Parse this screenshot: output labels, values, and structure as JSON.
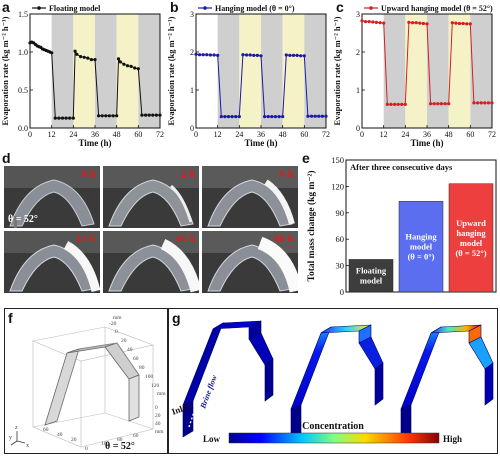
{
  "panel_labels": {
    "a": "a",
    "b": "b",
    "c": "c",
    "d": "d",
    "e": "e",
    "f": "f",
    "g": "g"
  },
  "chart_data": [
    {
      "id": "a",
      "type": "line",
      "legend": "Floating model",
      "xlabel": "Time (h)",
      "ylabel": "Evaporation rate (kg m⁻² h⁻¹)",
      "xlim": [
        0,
        72
      ],
      "ylim": [
        0,
        1.5
      ],
      "xticks": [
        0,
        12,
        24,
        36,
        48,
        60,
        72
      ],
      "yticks": [
        0.0,
        0.5,
        1.0,
        1.5
      ],
      "ytick_labels": [
        "0.0",
        "0.5",
        "1.0",
        "1.5"
      ],
      "color": "#111111",
      "x": [
        0,
        1,
        2,
        3,
        4,
        5,
        6,
        7,
        8,
        9,
        10,
        11,
        12,
        14,
        16,
        18,
        20,
        22,
        24,
        25,
        26,
        28,
        30,
        32,
        34,
        36,
        38,
        40,
        42,
        44,
        46,
        48,
        49,
        50,
        52,
        54,
        56,
        58,
        60,
        62,
        64,
        66,
        68,
        70,
        72
      ],
      "y": [
        1.12,
        1.13,
        1.12,
        1.1,
        1.08,
        1.07,
        1.06,
        1.04,
        1.03,
        1.02,
        1.01,
        1.0,
        0.99,
        0.13,
        0.13,
        0.13,
        0.13,
        0.13,
        0.13,
        1.01,
        0.97,
        0.94,
        0.93,
        0.92,
        0.9,
        0.9,
        0.16,
        0.16,
        0.16,
        0.16,
        0.16,
        0.16,
        0.91,
        0.87,
        0.84,
        0.82,
        0.81,
        0.79,
        0.78,
        0.17,
        0.17,
        0.17,
        0.17,
        0.17,
        0.17
      ],
      "shading": [
        {
          "from": 12,
          "to": 24,
          "color": "#cfcfcf"
        },
        {
          "from": 24,
          "to": 36,
          "color": "#f6f2c8"
        },
        {
          "from": 36,
          "to": 48,
          "color": "#cfcfcf"
        },
        {
          "from": 48,
          "to": 60,
          "color": "#f6f2c8"
        },
        {
          "from": 60,
          "to": 72,
          "color": "#cfcfcf"
        }
      ]
    },
    {
      "id": "b",
      "type": "line",
      "legend": "Hanging model (θ = 0°)",
      "xlabel": "Time (h)",
      "ylabel": "Evaporation rate (kg m⁻² h⁻¹)",
      "xlim": [
        0,
        72
      ],
      "ylim": [
        0,
        3
      ],
      "xticks": [
        0,
        12,
        24,
        36,
        48,
        60,
        72
      ],
      "yticks": [
        0,
        1,
        2,
        3
      ],
      "ytick_labels": [
        "0",
        "1",
        "2",
        "3"
      ],
      "color": "#1a1aa6",
      "x": [
        0,
        2,
        4,
        6,
        8,
        10,
        12,
        14,
        16,
        18,
        20,
        22,
        24,
        26,
        28,
        30,
        32,
        34,
        36,
        38,
        40,
        42,
        44,
        46,
        48,
        50,
        52,
        54,
        56,
        58,
        60,
        62,
        64,
        66,
        68,
        70,
        72
      ],
      "y": [
        1.94,
        1.93,
        1.93,
        1.93,
        1.92,
        1.92,
        1.91,
        0.3,
        0.3,
        0.3,
        0.3,
        0.3,
        0.3,
        1.93,
        1.92,
        1.92,
        1.91,
        1.91,
        1.9,
        0.3,
        0.3,
        0.3,
        0.3,
        0.3,
        0.3,
        1.92,
        1.91,
        1.91,
        1.91,
        1.9,
        1.9,
        0.31,
        0.31,
        0.31,
        0.31,
        0.31,
        0.31
      ],
      "shading": [
        {
          "from": 12,
          "to": 24,
          "color": "#cfcfcf"
        },
        {
          "from": 24,
          "to": 36,
          "color": "#f6f2c8"
        },
        {
          "from": 36,
          "to": 48,
          "color": "#cfcfcf"
        },
        {
          "from": 48,
          "to": 60,
          "color": "#f6f2c8"
        },
        {
          "from": 60,
          "to": 72,
          "color": "#cfcfcf"
        }
      ]
    },
    {
      "id": "c",
      "type": "line",
      "legend": "Upward hanging model (θ = 52°)",
      "xlabel": "Time (h)",
      "ylabel": "Evaporation rate (kg m⁻² h⁻¹)",
      "xlim": [
        0,
        72
      ],
      "ylim": [
        0,
        3
      ],
      "xticks": [
        0,
        12,
        24,
        36,
        48,
        60,
        72
      ],
      "yticks": [
        0,
        1,
        2,
        3
      ],
      "ytick_labels": [
        "0",
        "1",
        "2",
        "3"
      ],
      "color": "#d42020",
      "x": [
        0,
        2,
        4,
        6,
        8,
        10,
        12,
        14,
        16,
        18,
        20,
        22,
        24,
        26,
        28,
        30,
        32,
        34,
        36,
        38,
        40,
        42,
        44,
        46,
        48,
        50,
        52,
        54,
        56,
        58,
        60,
        62,
        64,
        66,
        68,
        70,
        72
      ],
      "y": [
        2.82,
        2.8,
        2.8,
        2.79,
        2.78,
        2.77,
        2.76,
        0.62,
        0.62,
        0.62,
        0.62,
        0.62,
        0.62,
        2.78,
        2.77,
        2.77,
        2.76,
        2.75,
        2.74,
        0.64,
        0.64,
        0.64,
        0.64,
        0.64,
        0.64,
        2.77,
        2.76,
        2.75,
        2.75,
        2.74,
        2.74,
        0.66,
        0.66,
        0.66,
        0.66,
        0.66,
        0.66
      ],
      "shading": [
        {
          "from": 12,
          "to": 24,
          "color": "#cfcfcf"
        },
        {
          "from": 24,
          "to": 36,
          "color": "#f6f2c8"
        },
        {
          "from": 36,
          "to": 48,
          "color": "#cfcfcf"
        },
        {
          "from": 48,
          "to": 60,
          "color": "#f6f2c8"
        },
        {
          "from": 60,
          "to": 72,
          "color": "#cfcfcf"
        }
      ]
    },
    {
      "id": "e",
      "type": "bar",
      "annotation": "After three consecutive days",
      "ylabel": "Total mass change (kg m⁻²)",
      "ylim": [
        0,
        150
      ],
      "yticks": [
        0,
        30,
        60,
        90,
        120,
        150
      ],
      "categories": [
        "Floating model",
        "Hanging model (θ = 0°)",
        "Upward hanging model (θ = 52°)"
      ],
      "category_lines": [
        [
          "Floating",
          "model"
        ],
        [
          "Hanging",
          "model",
          "(θ = 0°)"
        ],
        [
          "Upward",
          "hanging",
          "model",
          "(θ = 52°)"
        ]
      ],
      "values": [
        37,
        103,
        123
      ],
      "colors": [
        "#3d3d3d",
        "#5b6ef0",
        "#ee3f3f"
      ]
    }
  ],
  "photos": {
    "times": [
      "0 h",
      "2 h",
      "6 h",
      "12 h",
      "36 h",
      "60 h"
    ],
    "angle": "θ = 52°"
  },
  "model_f": {
    "angle": "θ = 52°",
    "axis_ticks": [
      "-20",
      "0",
      "20",
      "40",
      "60",
      "80",
      "100",
      "120",
      "0",
      "20",
      "40",
      "60",
      "80",
      "100",
      "0",
      "20",
      "40",
      "60",
      "mm",
      "mm",
      "mm"
    ],
    "axis_letters": [
      "y",
      "z",
      "x"
    ]
  },
  "sim_g": {
    "inlet": "Inlet",
    "flow": "Brine flow",
    "colorbar_title": "Concentration",
    "low": "Low",
    "high": "High"
  }
}
